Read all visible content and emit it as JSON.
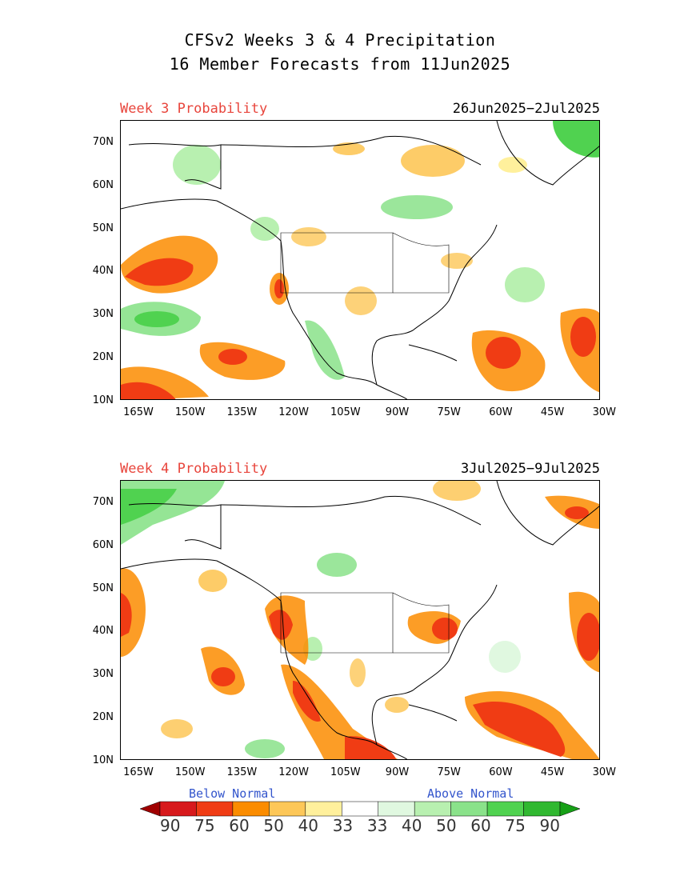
{
  "title": {
    "line1": "CFSv2 Weeks 3 & 4 Precipitation",
    "line2": "16 Member Forecasts from 11Jun2025"
  },
  "panels": [
    {
      "label": "Week 3 Probability",
      "dates": "26Jun2025−2Jul2025"
    },
    {
      "label": "Week 4 Probability",
      "dates": "3Jul2025−9Jul2025"
    }
  ],
  "lat_ticks": [
    "70N",
    "60N",
    "50N",
    "40N",
    "30N",
    "20N",
    "10N"
  ],
  "lon_ticks": [
    "165W",
    "150W",
    "135W",
    "120W",
    "105W",
    "90W",
    "75W",
    "60W",
    "45W",
    "30W"
  ],
  "legend": {
    "below_label": "Below Normal",
    "above_label": "Above Normal",
    "values": [
      "90",
      "75",
      "60",
      "50",
      "40",
      "33",
      "33",
      "40",
      "50",
      "60",
      "75",
      "90"
    ],
    "colors": [
      "#a00000",
      "#d7191c",
      "#f03c14",
      "#fb8c00",
      "#fdc758",
      "#fff09c",
      "#ffffff",
      "#e0f8e0",
      "#b8f0b0",
      "#8ae28a",
      "#50d250",
      "#30b830",
      "#17a017"
    ]
  }
}
